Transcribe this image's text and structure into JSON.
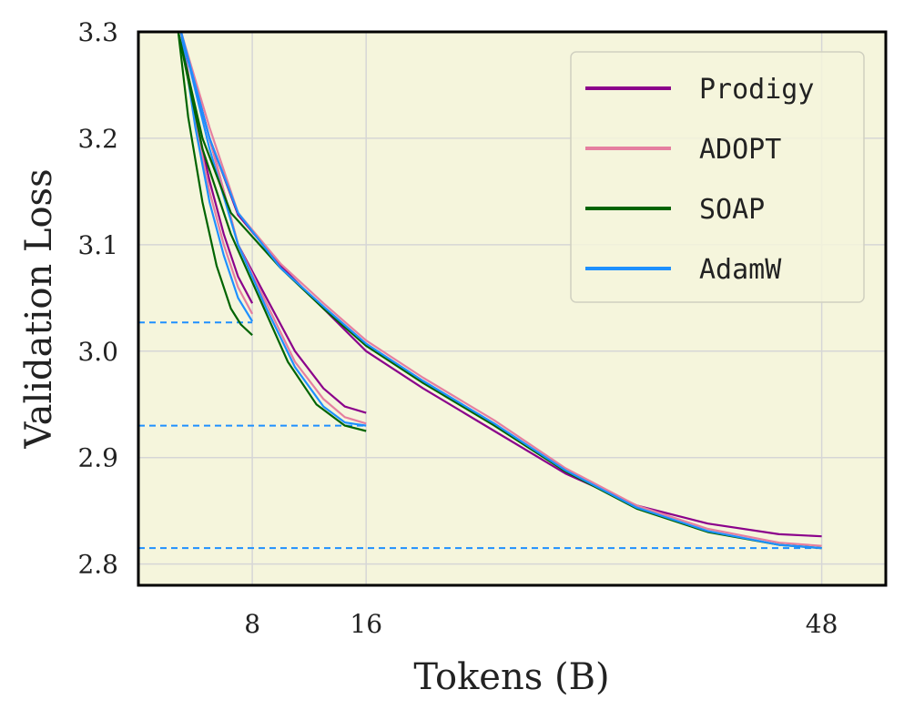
{
  "chart_data": {
    "type": "line",
    "xlabel": "Tokens (B)",
    "ylabel": "Validation Loss",
    "xlim": [
      0,
      52.5
    ],
    "ylim": [
      2.78,
      3.3
    ],
    "xticks": [
      8,
      16,
      48
    ],
    "yticks": [
      2.8,
      2.9,
      3.0,
      3.1,
      3.2,
      3.3
    ],
    "grid": true,
    "legend_position": "top-right",
    "colors": {
      "background": "#f5f5dc",
      "grid": "#d6d6d6",
      "Prodigy": "#8b008b",
      "ADOPT": "#e57fa0",
      "SOAP": "#006400",
      "AdamW": "#1e90ff",
      "reference": "#1e90ff"
    },
    "reference_lines": [
      {
        "y": 3.027,
        "x_end": 8
      },
      {
        "y": 2.93,
        "x_end": 16
      },
      {
        "y": 2.815,
        "x_end": 48
      }
    ],
    "runs": [
      {
        "tokens": 8,
        "series": [
          {
            "name": "Prodigy",
            "x": [
              3.0,
              4.0,
              5.0,
              6.0,
              7.0,
              8.0
            ],
            "y": [
              3.3,
              3.22,
              3.16,
              3.11,
              3.07,
              3.045
            ]
          },
          {
            "name": "ADOPT",
            "x": [
              3.0,
              4.0,
              5.0,
              6.0,
              7.0,
              8.0
            ],
            "y": [
              3.3,
              3.215,
              3.15,
              3.1,
              3.06,
              3.035
            ]
          },
          {
            "name": "SOAP",
            "x": [
              2.8,
              3.5,
              4.5,
              5.5,
              6.5,
              7.2,
              8.0
            ],
            "y": [
              3.3,
              3.22,
              3.14,
              3.08,
              3.04,
              3.025,
              3.015
            ]
          },
          {
            "name": "AdamW",
            "x": [
              3.0,
              4.0,
              5.0,
              6.0,
              7.0,
              8.0
            ],
            "y": [
              3.3,
              3.21,
              3.14,
              3.09,
              3.05,
              3.028
            ]
          }
        ]
      },
      {
        "tokens": 16,
        "series": [
          {
            "name": "Prodigy",
            "x": [
              3.0,
              5.0,
              7.0,
              9.0,
              11.0,
              13.0,
              14.5,
              16.0
            ],
            "y": [
              3.3,
              3.2,
              3.1,
              3.05,
              3.0,
              2.965,
              2.948,
              2.942
            ]
          },
          {
            "name": "ADOPT",
            "x": [
              3.0,
              5.0,
              7.0,
              9.0,
              11.0,
              13.0,
              14.5,
              16.0
            ],
            "y": [
              3.3,
              3.2,
              3.1,
              3.045,
              2.99,
              2.955,
              2.938,
              2.932
            ]
          },
          {
            "name": "SOAP",
            "x": [
              2.8,
              4.5,
              6.5,
              8.5,
              10.5,
              12.5,
              14.5,
              16.0
            ],
            "y": [
              3.3,
              3.19,
              3.11,
              3.05,
              2.99,
              2.95,
              2.93,
              2.925
            ]
          },
          {
            "name": "AdamW",
            "x": [
              3.0,
              5.0,
              7.0,
              9.0,
              11.0,
              13.0,
              14.5,
              16.0
            ],
            "y": [
              3.3,
              3.19,
              3.1,
              3.04,
              2.985,
              2.948,
              2.933,
              2.93
            ]
          }
        ]
      },
      {
        "tokens": 48,
        "series": [
          {
            "name": "Prodigy",
            "x": [
              3.0,
              5.0,
              7.0,
              10.0,
              13.0,
              16.0,
              20.0,
              25.0,
              30.0,
              35.0,
              40.0,
              45.0,
              48.0
            ],
            "y": [
              3.3,
              3.2,
              3.128,
              3.08,
              3.04,
              3.0,
              2.965,
              2.925,
              2.885,
              2.855,
              2.838,
              2.828,
              2.826
            ]
          },
          {
            "name": "ADOPT",
            "x": [
              3.0,
              5.0,
              7.0,
              10.0,
              13.0,
              16.0,
              20.0,
              25.0,
              30.0,
              35.0,
              40.0,
              45.0,
              48.0
            ],
            "y": [
              3.3,
              3.21,
              3.13,
              3.082,
              3.045,
              3.01,
              2.975,
              2.935,
              2.89,
              2.855,
              2.833,
              2.82,
              2.817
            ]
          },
          {
            "name": "SOAP",
            "x": [
              2.8,
              4.5,
              6.5,
              10.0,
              13.0,
              16.0,
              20.0,
              25.0,
              30.0,
              35.0,
              40.0,
              45.0,
              48.0
            ],
            "y": [
              3.3,
              3.2,
              3.13,
              3.078,
              3.04,
              3.005,
              2.97,
              2.93,
              2.887,
              2.852,
              2.83,
              2.818,
              2.815
            ]
          },
          {
            "name": "AdamW",
            "x": [
              3.0,
              5.0,
              7.0,
              10.0,
              13.0,
              16.0,
              20.0,
              25.0,
              30.0,
              35.0,
              40.0,
              45.0,
              48.0
            ],
            "y": [
              3.3,
              3.2,
              3.13,
              3.078,
              3.042,
              3.007,
              2.972,
              2.932,
              2.888,
              2.853,
              2.831,
              2.818,
              2.815
            ]
          }
        ]
      }
    ],
    "legend": [
      "Prodigy",
      "ADOPT",
      "SOAP",
      "AdamW"
    ]
  }
}
